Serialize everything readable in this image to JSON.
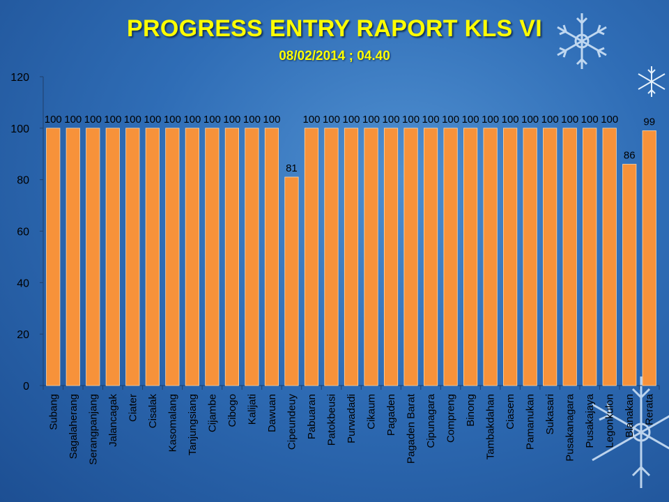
{
  "header": {
    "title": "PROGRESS ENTRY RAPORT KLS VI",
    "subtitle": "08/02/2014 ; 04.40"
  },
  "colors": {
    "bar": "#f7923a",
    "bar_edge": "#ffd7a8",
    "text": "#000000",
    "title": "#ffff00"
  },
  "decoration": [
    "snowflake-icon"
  ],
  "chart_data": {
    "type": "bar",
    "title": "PROGRESS ENTRY RAPORT KLS VI",
    "subtitle": "08/02/2014 ; 04.40",
    "xlabel": "",
    "ylabel": "",
    "ylim": [
      0,
      120
    ],
    "yticks": [
      0,
      20,
      40,
      60,
      80,
      100,
      120
    ],
    "grid": false,
    "legend": "none",
    "categories": [
      "Subang",
      "Sagalaherang",
      "Serangpanjang",
      "Jalancagak",
      "Ciater",
      "Cisalak",
      "Kasomalang",
      "Tanjungsiang",
      "Cijambe",
      "Cibogo",
      "Kalijati",
      "Dawuan",
      "Cipeundeuy",
      "Pabuaran",
      "Patokbeusi",
      "Purwadadi",
      "Cikaum",
      "Pagaden",
      "Pagaden Barat",
      "Cipunagara",
      "Compreng",
      "Binong",
      "Tambakdahan",
      "Ciasem",
      "Pamanukan",
      "Sukasari",
      "Pusakanagara",
      "Pusakajaya",
      "Legonkulon",
      "Blanakan",
      "Rerata"
    ],
    "values": [
      100,
      100,
      100,
      100,
      100,
      100,
      100,
      100,
      100,
      100,
      100,
      100,
      81,
      100,
      100,
      100,
      100,
      100,
      100,
      100,
      100,
      100,
      100,
      100,
      100,
      100,
      100,
      100,
      100,
      86,
      99
    ],
    "value_labels": [
      "100",
      "100",
      "100",
      "100",
      "100",
      "100",
      "100",
      "100",
      "100",
      "100",
      "100",
      "100",
      "81",
      "100",
      "100",
      "100",
      "100",
      "100",
      "100",
      "100",
      "100",
      "100",
      "100",
      "100",
      "100",
      "100",
      "100",
      "100",
      "100",
      "86",
      "99"
    ]
  }
}
